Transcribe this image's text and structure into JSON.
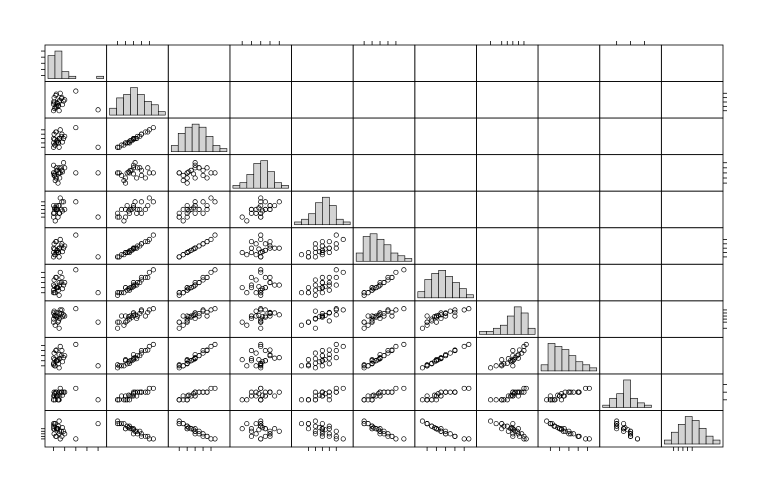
{
  "chart_data": {
    "type": "scatter_matrix",
    "point_color": "#000000",
    "hist_color": "#d3d3d3",
    "variables": [
      {
        "lim": [
          0,
          10
        ],
        "ticks": [
          1,
          3,
          5,
          7,
          9
        ],
        "hist": [
          10,
          12,
          3,
          1,
          0,
          0,
          0,
          1
        ],
        "values": [
          1,
          1.5,
          2,
          1,
          2.5,
          1.2,
          3,
          1.8,
          2.2,
          1,
          1.4,
          2,
          1.6,
          2.8,
          1.1,
          1.9,
          2.4,
          1.3,
          5,
          1.7,
          2.1,
          1.5,
          9,
          1.2,
          2.6
        ]
      },
      {
        "lim": [
          2,
          9
        ],
        "ticks": [
          3,
          4,
          5,
          6,
          7
        ],
        "hist": [
          2,
          5,
          6,
          8,
          6,
          4,
          3,
          1
        ],
        "values": [
          3,
          4,
          5,
          4.5,
          6,
          3.5,
          5.5,
          4,
          7,
          5,
          6.5,
          3,
          4.8,
          5.2,
          6,
          4.2,
          5.8,
          3.8,
          7.5,
          4.6,
          5.4,
          6.8,
          3.2,
          5,
          4.4
        ]
      },
      {
        "lim": [
          3,
          10
        ],
        "ticks": [
          4,
          5,
          6,
          7,
          8
        ],
        "hist": [
          2,
          6,
          8,
          9,
          8,
          5,
          2,
          1
        ],
        "values": [
          4,
          5,
          6,
          5,
          7,
          4.5,
          6.5,
          5,
          8,
          6,
          7.5,
          4,
          5.5,
          6,
          7,
          5,
          6.5,
          4.5,
          8.5,
          5.5,
          6,
          7.5,
          4,
          5.8,
          5.2
        ]
      },
      {
        "lim": [
          2,
          8
        ],
        "ticks": [
          3,
          4,
          5,
          6,
          7
        ],
        "hist": [
          1,
          2,
          5,
          9,
          10,
          6,
          2,
          1
        ],
        "values": [
          5,
          4,
          6,
          5,
          5.5,
          4.5,
          6,
          3,
          5,
          6.5,
          4,
          5,
          5.5,
          7,
          4.5,
          5,
          6,
          3.5,
          5,
          5.5,
          4,
          6,
          5,
          4.8,
          5.2
        ]
      },
      {
        "lim": [
          4,
          8
        ],
        "ticks": [
          5,
          5.5,
          6,
          6.5,
          7
        ],
        "hist": [
          1,
          2,
          4,
          8,
          10,
          7,
          2,
          1
        ],
        "values": [
          5,
          6,
          6.5,
          5.5,
          7,
          6,
          6,
          5,
          7.5,
          6.5,
          6,
          5.5,
          6,
          7,
          5.5,
          6.5,
          6,
          4.5,
          7,
          6,
          5.5,
          6.5,
          5,
          6.2,
          5.8
        ]
      },
      {
        "lim": [
          1,
          8
        ],
        "ticks": [
          2,
          3,
          4,
          5,
          6
        ],
        "hist": [
          3,
          9,
          10,
          8,
          6,
          3,
          2,
          1
        ],
        "values": [
          2,
          3,
          4,
          3,
          5,
          2.5,
          4.5,
          3,
          6,
          4,
          5.5,
          2,
          3.5,
          4,
          5,
          3,
          4.5,
          2.5,
          7,
          3.5,
          4,
          5.5,
          2,
          3.8,
          3.2
        ]
      },
      {
        "lim": [
          2,
          8
        ],
        "ticks": [
          3,
          4,
          5,
          6,
          7
        ],
        "hist": [
          2,
          6,
          8,
          9,
          7,
          5,
          3,
          1
        ],
        "values": [
          3,
          4,
          5,
          3.5,
          6,
          3,
          5,
          4,
          7,
          4.5,
          6,
          2.5,
          4,
          4.5,
          5.5,
          3.5,
          5,
          3,
          7.5,
          4,
          4.5,
          6,
          3,
          4.2,
          3.8
        ]
      },
      {
        "lim": [
          4,
          9
        ],
        "ticks": [
          5,
          6,
          6.5,
          7,
          7.5,
          8
        ],
        "hist": [
          1,
          1,
          2,
          3,
          6,
          9,
          7,
          2
        ],
        "values": [
          6,
          7,
          7.5,
          6.5,
          8,
          7,
          7,
          6,
          8,
          7.5,
          7,
          5,
          6.8,
          7.2,
          7.8,
          6.2,
          7.4,
          5.5,
          8.2,
          7,
          6.6,
          7.6,
          6,
          7.1,
          6.9
        ]
      },
      {
        "lim": [
          2,
          8
        ],
        "ticks": [
          3,
          4,
          5,
          6,
          7
        ],
        "hist": [
          2,
          9,
          8,
          7,
          5,
          3,
          2,
          1
        ],
        "values": [
          3.2,
          4,
          5.2,
          3.5,
          6,
          3,
          5,
          4.2,
          6.8,
          4.5,
          6,
          2.6,
          4,
          4.6,
          5.5,
          3.4,
          5,
          3,
          7.2,
          4,
          4.4,
          6.1,
          3,
          4.2,
          3.8
        ]
      },
      {
        "lim": [
          3,
          7
        ],
        "ticks": [
          4,
          5,
          6
        ],
        "hist": [
          1,
          4,
          6,
          12,
          4,
          2,
          1,
          0
        ],
        "values": [
          4,
          4.5,
          5,
          4,
          5,
          4.5,
          5,
          4,
          5.5,
          4.5,
          5,
          4,
          4.5,
          5,
          5,
          4,
          5,
          4,
          5.5,
          4.5,
          4.5,
          5,
          4,
          4.8,
          4.6
        ]
      },
      {
        "lim": [
          2,
          8
        ],
        "ticks": [
          3,
          3.5,
          4,
          4.5,
          5
        ],
        "hist": [
          1,
          3,
          5,
          7,
          6,
          4,
          2,
          1
        ],
        "values": [
          6,
          5,
          4,
          5.5,
          3.5,
          6,
          4,
          5,
          3,
          5,
          3.5,
          6.5,
          5,
          4.5,
          4,
          5.5,
          4.5,
          6,
          3,
          5,
          4.5,
          3.5,
          6,
          4.8,
          5.2
        ]
      }
    ]
  }
}
